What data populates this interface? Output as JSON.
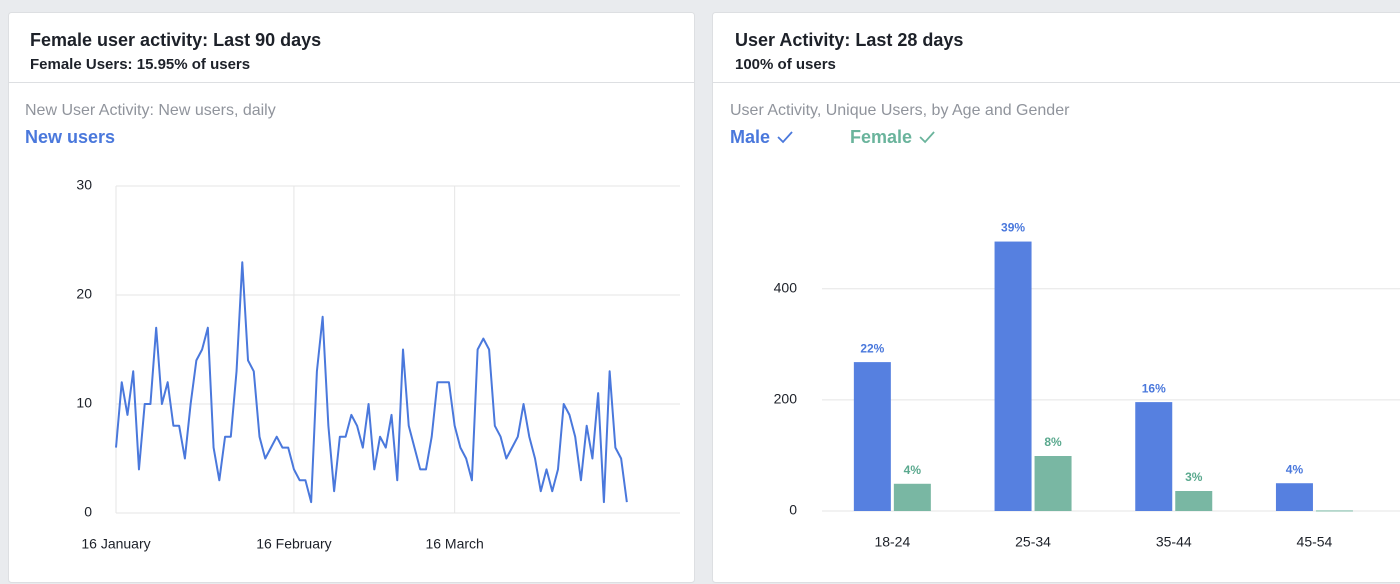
{
  "cards": [
    {
      "title": "Female user activity: Last 90 days",
      "subtitle": "Female Users: 15.95% of users"
    },
    {
      "title": "User Activity: Last 28 days",
      "subtitle": "100% of users"
    }
  ],
  "chart_data": [
    {
      "type": "line",
      "title": "New User Activity: New users, daily",
      "categories": [
        "16 January",
        null,
        null,
        null,
        null,
        null,
        null,
        null,
        null,
        null,
        null,
        null,
        null,
        null,
        null,
        null,
        null,
        null,
        null,
        null,
        null,
        null,
        null,
        null,
        null,
        null,
        null,
        null,
        null,
        null,
        null,
        "16 February",
        null,
        null,
        null,
        null,
        null,
        null,
        null,
        null,
        null,
        null,
        null,
        null,
        null,
        null,
        null,
        null,
        null,
        null,
        null,
        null,
        null,
        null,
        null,
        null,
        null,
        null,
        null,
        "16 March",
        null,
        null,
        null,
        null,
        null,
        null,
        null,
        null,
        null,
        null,
        null,
        null,
        null,
        null,
        null,
        null,
        null,
        null,
        null,
        null,
        null,
        null,
        null,
        null,
        null,
        null,
        null,
        null,
        null,
        null
      ],
      "series": [
        {
          "name": "New users",
          "color": "#4a78dc",
          "values": [
            6,
            12,
            9,
            13,
            4,
            10,
            10,
            17,
            10,
            12,
            8,
            8,
            5,
            10,
            14,
            15,
            17,
            6,
            3,
            7,
            7,
            13,
            23,
            14,
            13,
            7,
            5,
            6,
            7,
            6,
            6,
            4,
            3,
            3,
            1,
            13,
            18,
            8,
            2,
            7,
            7,
            9,
            8,
            6,
            10,
            4,
            7,
            6,
            9,
            3,
            15,
            8,
            6,
            4,
            4,
            7,
            12,
            12,
            12,
            8,
            6,
            5,
            3,
            15,
            16,
            15,
            8,
            7,
            5,
            6,
            7,
            10,
            7,
            5,
            2,
            4,
            2,
            4,
            10,
            9,
            7,
            3,
            8,
            5,
            11,
            1,
            13,
            6,
            5,
            1
          ]
        }
      ],
      "ylim": [
        0,
        30
      ],
      "yticks": [
        0,
        10,
        20,
        30
      ],
      "grid": true
    },
    {
      "type": "bar",
      "title": "User Activity, Unique Users, by Age and Gender",
      "categories": [
        "18-24",
        "25-34",
        "35-44",
        "45-54"
      ],
      "series": [
        {
          "name": "Male",
          "color": "#5680e0",
          "values": [
            268,
            485,
            196,
            50
          ],
          "value_labels": [
            "22%",
            "39%",
            "16%",
            "4%"
          ]
        },
        {
          "name": "Female",
          "color": "#79b7a3",
          "values": [
            49,
            99,
            36,
            1
          ],
          "value_labels": [
            "4%",
            "8%",
            "3%",
            null
          ]
        }
      ],
      "ylim": [
        0,
        585
      ],
      "yticks": [
        0,
        200,
        400
      ],
      "grid": true
    }
  ]
}
